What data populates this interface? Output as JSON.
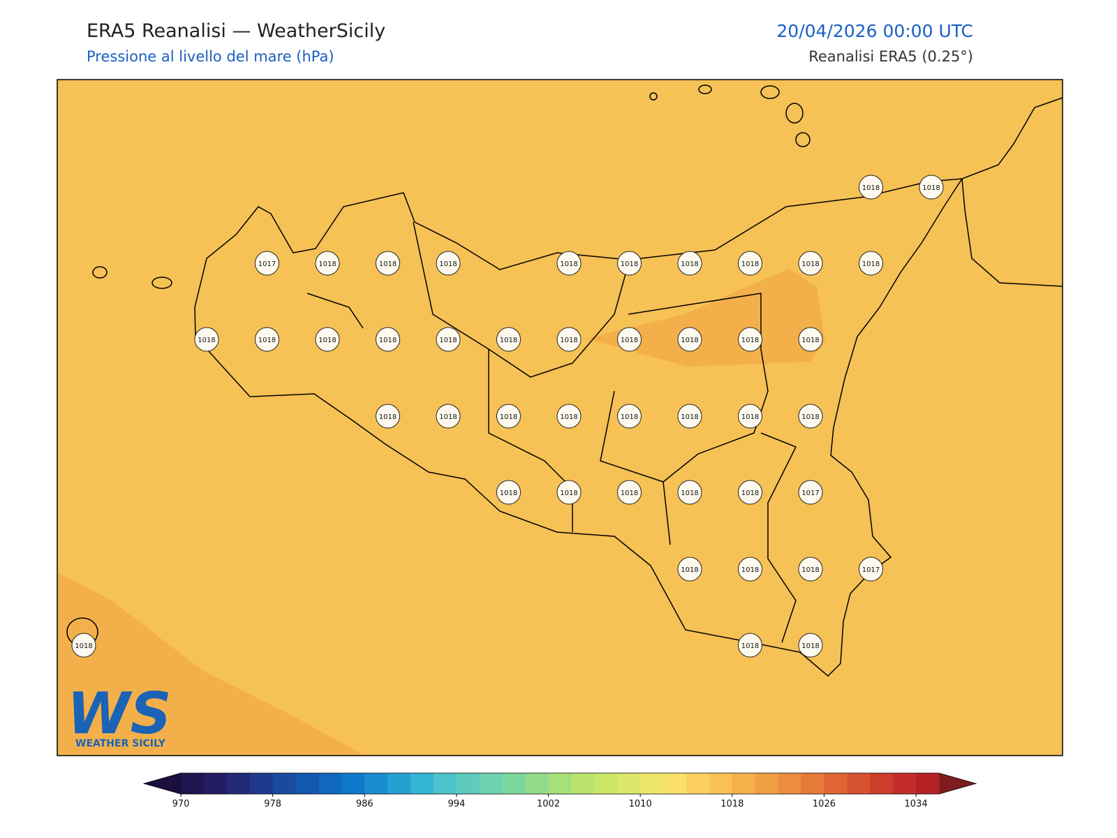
{
  "header": {
    "title": "ERA5 Reanalisi — WeatherSicily",
    "subtitle": "Pressione al livello del mare (hPa)",
    "date": "20/04/2026 00:00 UTC",
    "source": "Reanalisi ERA5 (0.25°)"
  },
  "map": {
    "field_color": "#f6c155",
    "high_color": "#f3b04a",
    "station_values": [
      1018,
      1018,
      1017,
      1018,
      1018,
      1018,
      1018,
      1018,
      1018,
      1018,
      1018,
      1018,
      1018,
      1018,
      1018,
      1018,
      1018,
      1018,
      1018,
      1018,
      1018,
      1018,
      1018,
      1018,
      1018,
      1018,
      1018,
      1018,
      1018,
      1018,
      1018,
      1018,
      1018,
      1018,
      1018,
      1018,
      1017,
      1018,
      1018,
      1018,
      1017,
      1018,
      1018,
      1018
    ]
  },
  "colorbar": {
    "lim": [
      970,
      1036
    ],
    "ticks": [
      970,
      978,
      986,
      994,
      1002,
      1010,
      1018,
      1026,
      1034
    ],
    "under_color": "#1a0f3f",
    "over_color": "#7d1c1e",
    "colors": [
      "#1f1550",
      "#221c63",
      "#222a78",
      "#1f3a8c",
      "#1a4aa0",
      "#1457b0",
      "#1167be",
      "#0e79c9",
      "#1a8ccf",
      "#26a0d3",
      "#35b5d4",
      "#4cc3cb",
      "#5fcbbf",
      "#6dd2b0",
      "#7cd79d",
      "#91db8a",
      "#a5e07a",
      "#bae36d",
      "#cce668",
      "#dde86a",
      "#ece76b",
      "#f8e06a",
      "#fbd05f",
      "#f9c155",
      "#f5b04c",
      "#f19f45",
      "#ec8d3f",
      "#e67a39",
      "#df6534",
      "#d6522f",
      "#cc3e2c",
      "#c22d2b",
      "#b52329"
    ]
  },
  "logo": {
    "mark": "WS",
    "text": "WEATHER SICILY"
  }
}
